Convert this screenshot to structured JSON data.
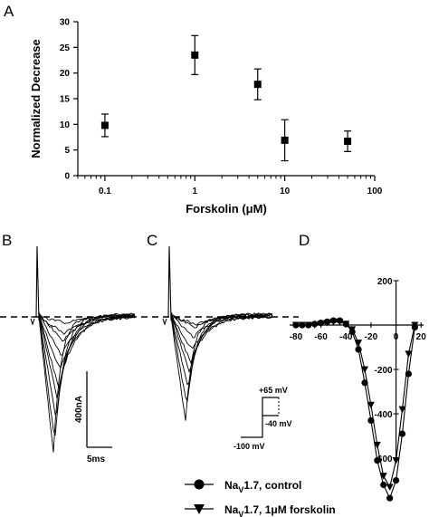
{
  "panel_labels": [
    "A",
    "B",
    "C",
    "D"
  ],
  "chart_data": [
    {
      "panel": "A",
      "type": "scatter",
      "xlabel": "Forskolin (μM)",
      "ylabel": "Normalized Decrease",
      "x_scale": "log",
      "xlim": [
        0.05,
        100
      ],
      "ylim": [
        0,
        30
      ],
      "x_ticks": [
        0.1,
        1,
        10,
        100
      ],
      "x_tick_labels": [
        "0.1",
        "1",
        "10",
        "100"
      ],
      "y_ticks": [
        0,
        5,
        10,
        15,
        20,
        25,
        30
      ],
      "y_tick_labels": [
        "0",
        "5",
        "10",
        "15",
        "20",
        "25",
        "30"
      ],
      "marker": "square",
      "series": [
        {
          "x": [
            0.1,
            1,
            5,
            10,
            50
          ],
          "y": [
            9.8,
            23.5,
            17.8,
            6.9,
            6.7
          ],
          "error": [
            2.2,
            3.8,
            3.0,
            4.0,
            2.0
          ]
        }
      ]
    },
    {
      "panel": "D",
      "type": "line",
      "x_ticks": [
        -80,
        -60,
        -40,
        -20,
        0,
        20
      ],
      "x_tick_labels": [
        "-80",
        "-60",
        "-40",
        "-20",
        "0",
        "20"
      ],
      "y_ticks": [
        200,
        0,
        -200,
        -400,
        -600
      ],
      "y_tick_labels": [
        "200",
        "0",
        "-200",
        "-400",
        "-600"
      ],
      "xlim": [
        -85,
        22
      ],
      "ylim": [
        -820,
        200
      ],
      "series": [
        {
          "name": "NaV1.7, control",
          "marker": "circle",
          "x": [
            -80,
            -75,
            -70,
            -65,
            -60,
            -55,
            -50,
            -45,
            -40,
            -35,
            -30,
            -25,
            -20,
            -15,
            -10,
            -5,
            0,
            5,
            10,
            15
          ],
          "y": [
            0,
            0,
            0,
            5,
            10,
            15,
            20,
            20,
            5,
            -30,
            -110,
            -260,
            -430,
            -610,
            -720,
            -780,
            -700,
            -490,
            -220,
            -10
          ]
        },
        {
          "name": "NaV1.7, 1μM forskolin",
          "marker": "triangle-down",
          "x": [
            -80,
            -75,
            -70,
            -65,
            -60,
            -55,
            -50,
            -45,
            -40,
            -35,
            -30,
            -25,
            -20,
            -15,
            -10,
            -5,
            0,
            5,
            10,
            15
          ],
          "y": [
            0,
            0,
            0,
            0,
            5,
            10,
            15,
            15,
            5,
            -20,
            -80,
            -200,
            -360,
            -540,
            -680,
            -730,
            -610,
            -380,
            -130,
            0
          ]
        }
      ]
    }
  ],
  "traces": {
    "b_peaks": [
      150,
      140,
      115,
      95,
      78,
      60,
      45,
      30,
      18,
      8
    ],
    "c_peaks": [
      115,
      100,
      80,
      65,
      50,
      38,
      25,
      15,
      8
    ]
  },
  "scale_bar": {
    "current": "400nA",
    "time": "5ms"
  },
  "protocol": {
    "top": "+65 mV",
    "mid": "-40 mV",
    "hold": "-100 mV"
  },
  "legend": [
    {
      "label": "Na",
      "sub": "V",
      "rest": "1.7, control",
      "marker": "circle"
    },
    {
      "label": "Na",
      "sub": "V",
      "rest": "1.7, 1μM forskolin",
      "marker": "triangle-down"
    }
  ]
}
